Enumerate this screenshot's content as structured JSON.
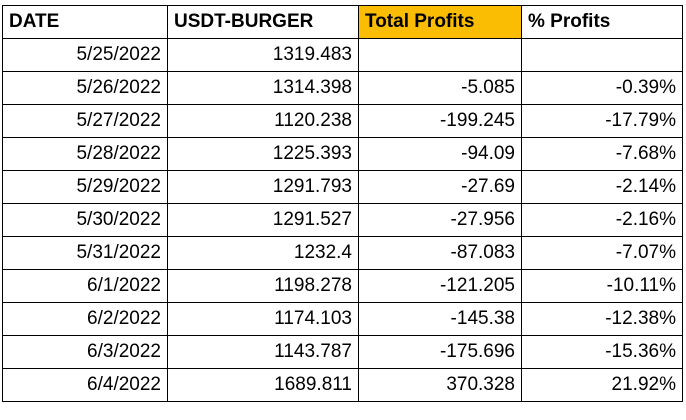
{
  "header": {
    "date": "DATE",
    "usdt_burger": "USDT-BURGER",
    "total_profits": "Total Profits",
    "pct_profits": "% Profits"
  },
  "highlight_color": "#fbbd04",
  "rows": [
    {
      "date": "5/25/2022",
      "usdt": "1319.483",
      "total": "",
      "pct": ""
    },
    {
      "date": "5/26/2022",
      "usdt": "1314.398",
      "total": "-5.085",
      "pct": "-0.39%"
    },
    {
      "date": "5/27/2022",
      "usdt": "1120.238",
      "total": "-199.245",
      "pct": "-17.79%"
    },
    {
      "date": "5/28/2022",
      "usdt": "1225.393",
      "total": "-94.09",
      "pct": "-7.68%"
    },
    {
      "date": "5/29/2022",
      "usdt": "1291.793",
      "total": "-27.69",
      "pct": "-2.14%"
    },
    {
      "date": "5/30/2022",
      "usdt": "1291.527",
      "total": "-27.956",
      "pct": "-2.16%"
    },
    {
      "date": "5/31/2022",
      "usdt": "1232.4",
      "total": "-87.083",
      "pct": "-7.07%"
    },
    {
      "date": "6/1/2022",
      "usdt": "1198.278",
      "total": "-121.205",
      "pct": "-10.11%"
    },
    {
      "date": "6/2/2022",
      "usdt": "1174.103",
      "total": "-145.38",
      "pct": "-12.38%"
    },
    {
      "date": "6/3/2022",
      "usdt": "1143.787",
      "total": "-175.696",
      "pct": "-15.36%"
    },
    {
      "date": "6/4/2022",
      "usdt": "1689.811",
      "total": "370.328",
      "pct": "21.92%"
    }
  ]
}
